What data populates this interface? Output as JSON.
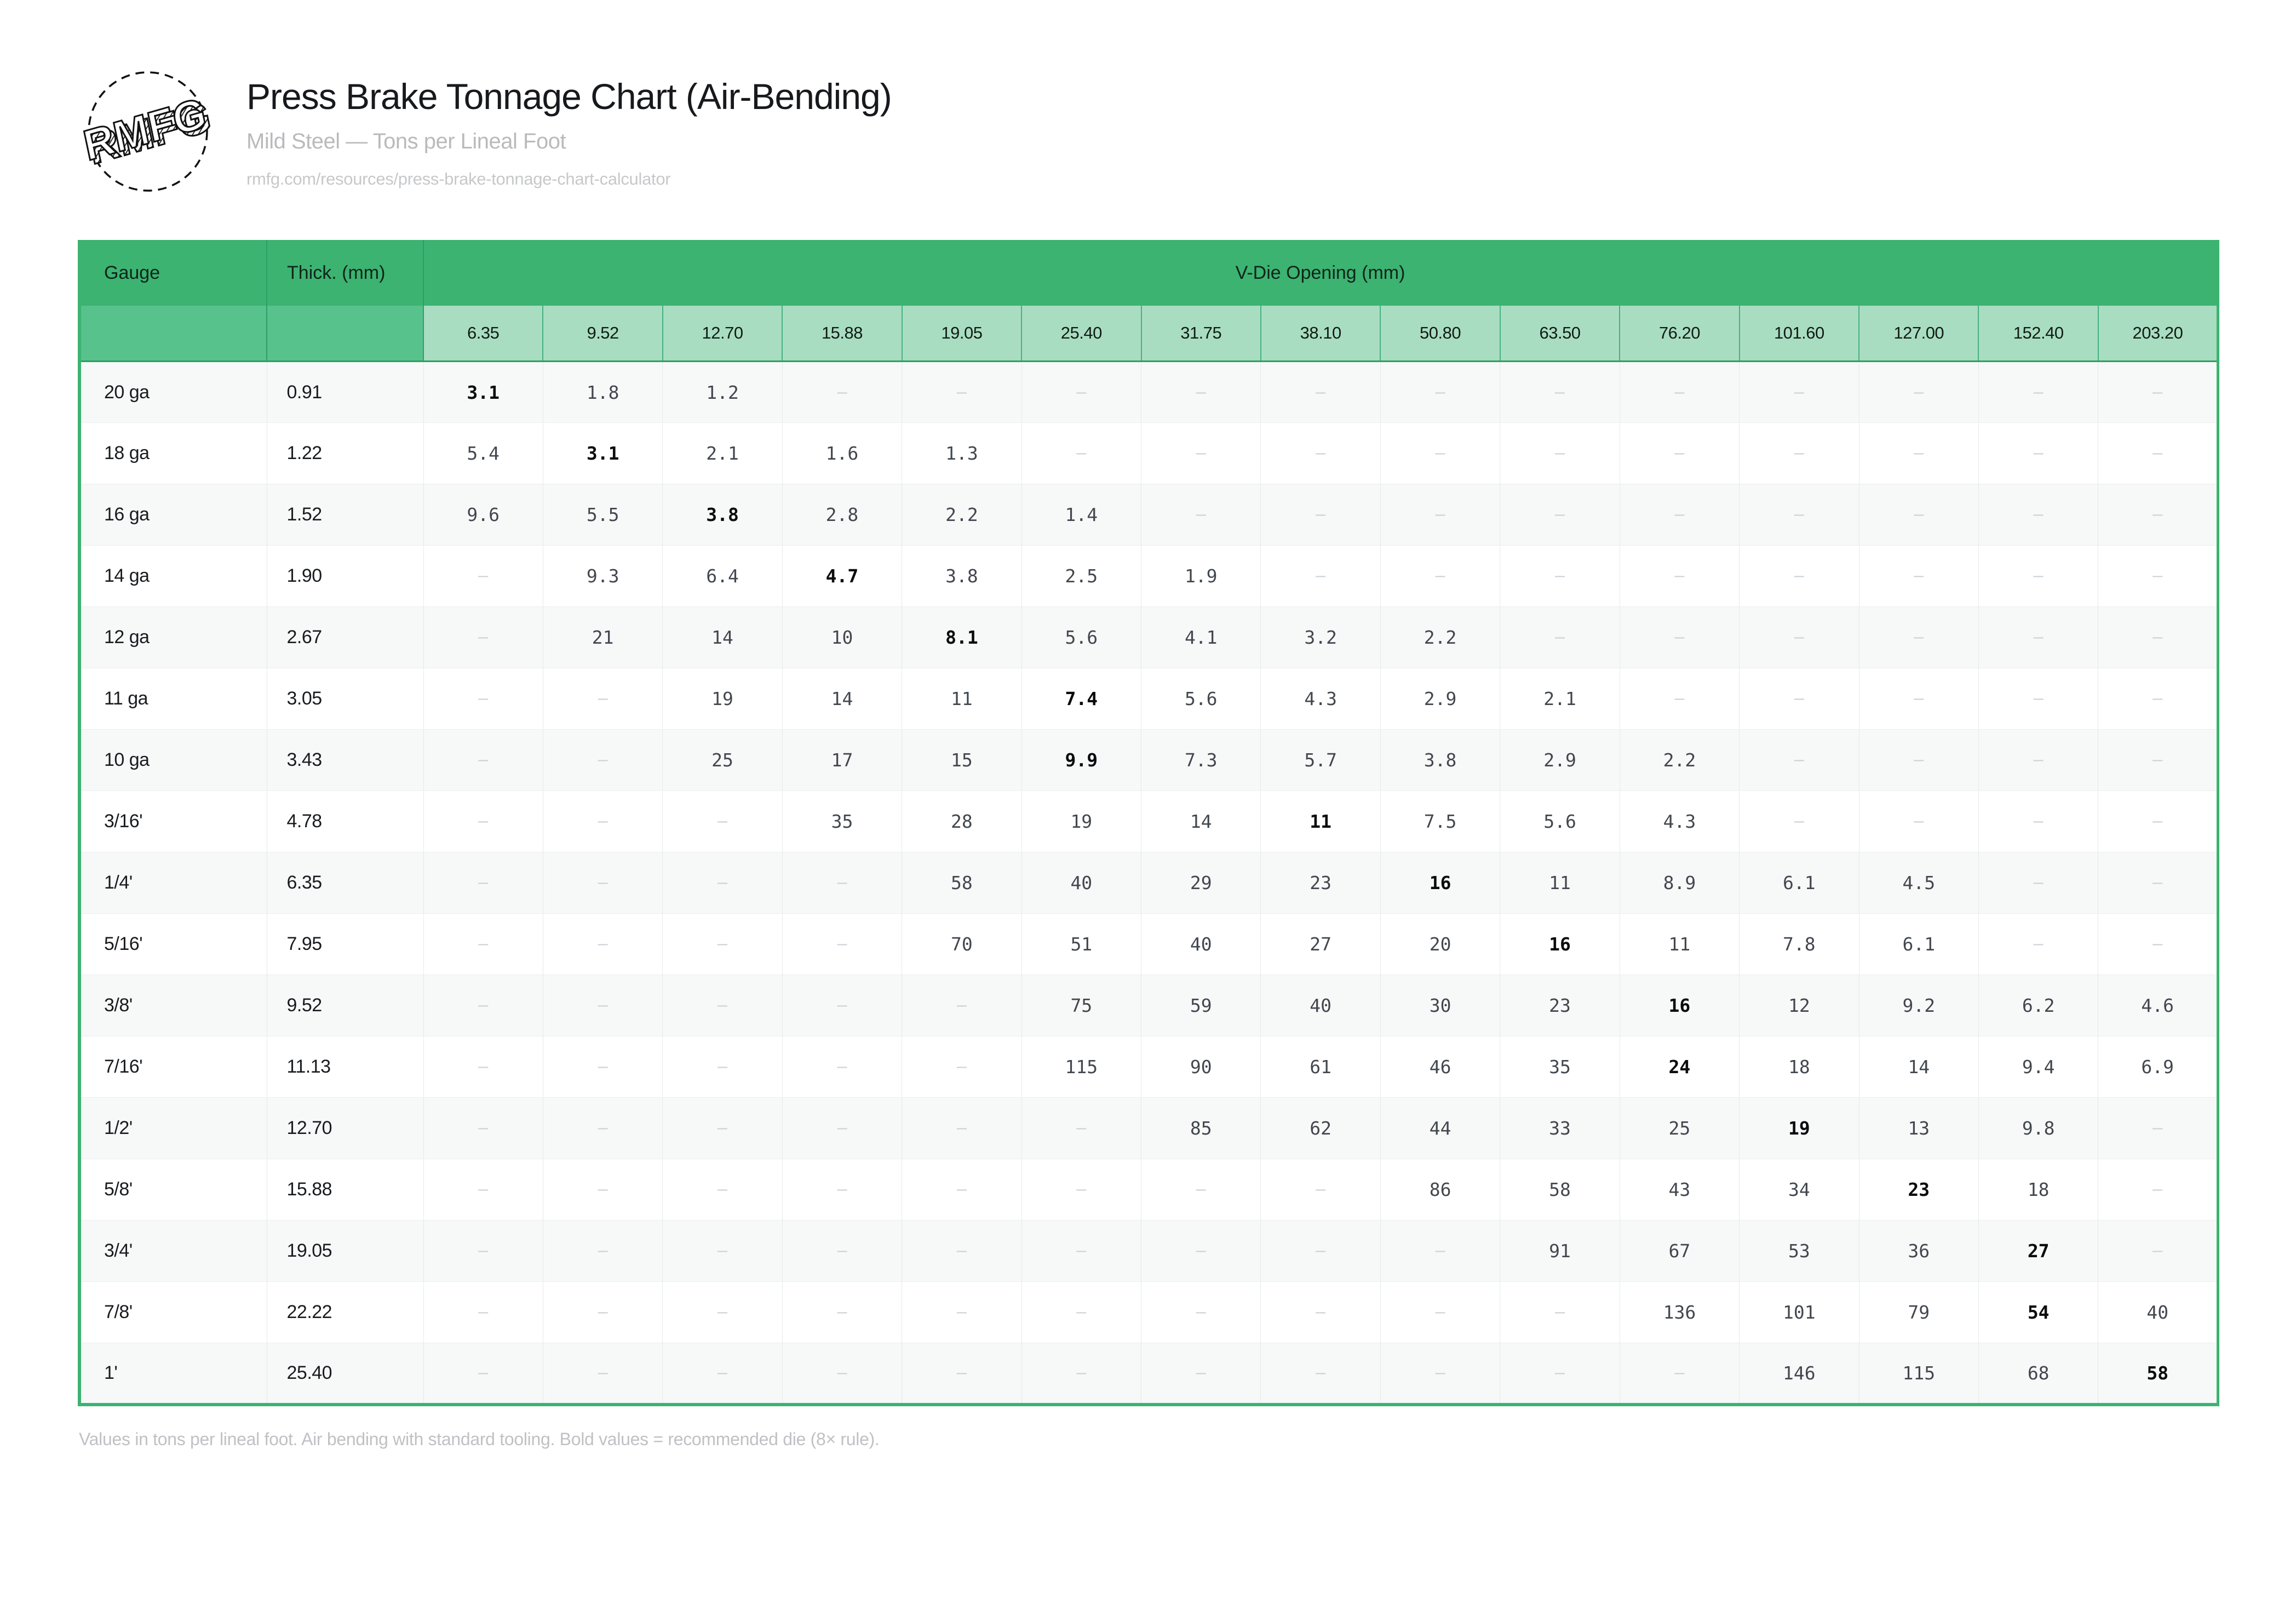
{
  "branding": {
    "logo_text": "RMFG"
  },
  "header": {
    "title": "Press Brake Tonnage Chart (Air-Bending)",
    "subtitle": "Mild Steel — Tons per Lineal Foot",
    "url": "rmfg.com/resources/press-brake-tonnage-chart-calculator"
  },
  "colors": {
    "header_green": "#3cb371",
    "subheader_corner_green": "#57c28c",
    "die_header_green": "#a9ddc1",
    "divider_green": "#2f9e66",
    "bold_value_color": "#0a0c0e",
    "value_color": "#42474e",
    "empty_dash_color": "#ccd1d6"
  },
  "table": {
    "gauge_label": "Gauge",
    "thickness_label": "Thick. (mm)",
    "vdie_group_label": "V-Die Opening (mm)",
    "empty_marker": "–",
    "die_openings": [
      "6.35",
      "9.52",
      "12.70",
      "15.88",
      "19.05",
      "25.40",
      "31.75",
      "38.10",
      "50.80",
      "63.50",
      "76.20",
      "101.60",
      "127.00",
      "152.40",
      "203.20"
    ],
    "rows": [
      {
        "gauge": "20 ga",
        "thickness": "0.91",
        "bold_col": 0,
        "values": [
          "3.1",
          "1.8",
          "1.2",
          null,
          null,
          null,
          null,
          null,
          null,
          null,
          null,
          null,
          null,
          null,
          null
        ]
      },
      {
        "gauge": "18 ga",
        "thickness": "1.22",
        "bold_col": 1,
        "values": [
          "5.4",
          "3.1",
          "2.1",
          "1.6",
          "1.3",
          null,
          null,
          null,
          null,
          null,
          null,
          null,
          null,
          null,
          null
        ]
      },
      {
        "gauge": "16 ga",
        "thickness": "1.52",
        "bold_col": 2,
        "values": [
          "9.6",
          "5.5",
          "3.8",
          "2.8",
          "2.2",
          "1.4",
          null,
          null,
          null,
          null,
          null,
          null,
          null,
          null,
          null
        ]
      },
      {
        "gauge": "14 ga",
        "thickness": "1.90",
        "bold_col": 3,
        "values": [
          null,
          "9.3",
          "6.4",
          "4.7",
          "3.8",
          "2.5",
          "1.9",
          null,
          null,
          null,
          null,
          null,
          null,
          null,
          null
        ]
      },
      {
        "gauge": "12 ga",
        "thickness": "2.67",
        "bold_col": 4,
        "values": [
          null,
          "21",
          "14",
          "10",
          "8.1",
          "5.6",
          "4.1",
          "3.2",
          "2.2",
          null,
          null,
          null,
          null,
          null,
          null
        ]
      },
      {
        "gauge": "11 ga",
        "thickness": "3.05",
        "bold_col": 5,
        "values": [
          null,
          null,
          "19",
          "14",
          "11",
          "7.4",
          "5.6",
          "4.3",
          "2.9",
          "2.1",
          null,
          null,
          null,
          null,
          null
        ]
      },
      {
        "gauge": "10 ga",
        "thickness": "3.43",
        "bold_col": 5,
        "values": [
          null,
          null,
          "25",
          "17",
          "15",
          "9.9",
          "7.3",
          "5.7",
          "3.8",
          "2.9",
          "2.2",
          null,
          null,
          null,
          null
        ]
      },
      {
        "gauge": "3/16'",
        "thickness": "4.78",
        "bold_col": 7,
        "values": [
          null,
          null,
          null,
          "35",
          "28",
          "19",
          "14",
          "11",
          "7.5",
          "5.6",
          "4.3",
          null,
          null,
          null,
          null
        ]
      },
      {
        "gauge": "1/4'",
        "thickness": "6.35",
        "bold_col": 8,
        "values": [
          null,
          null,
          null,
          null,
          "58",
          "40",
          "29",
          "23",
          "16",
          "11",
          "8.9",
          "6.1",
          "4.5",
          null,
          null
        ]
      },
      {
        "gauge": "5/16'",
        "thickness": "7.95",
        "bold_col": 9,
        "values": [
          null,
          null,
          null,
          null,
          "70",
          "51",
          "40",
          "27",
          "20",
          "16",
          "11",
          "7.8",
          "6.1",
          null,
          null
        ]
      },
      {
        "gauge": "3/8'",
        "thickness": "9.52",
        "bold_col": 10,
        "values": [
          null,
          null,
          null,
          null,
          null,
          "75",
          "59",
          "40",
          "30",
          "23",
          "16",
          "12",
          "9.2",
          "6.2",
          "4.6"
        ]
      },
      {
        "gauge": "7/16'",
        "thickness": "11.13",
        "bold_col": 10,
        "values": [
          null,
          null,
          null,
          null,
          null,
          "115",
          "90",
          "61",
          "46",
          "35",
          "24",
          "18",
          "14",
          "9.4",
          "6.9"
        ]
      },
      {
        "gauge": "1/2'",
        "thickness": "12.70",
        "bold_col": 11,
        "values": [
          null,
          null,
          null,
          null,
          null,
          null,
          "85",
          "62",
          "44",
          "33",
          "25",
          "19",
          "13",
          "9.8",
          null
        ]
      },
      {
        "gauge": "5/8'",
        "thickness": "15.88",
        "bold_col": 12,
        "values": [
          null,
          null,
          null,
          null,
          null,
          null,
          null,
          null,
          "86",
          "58",
          "43",
          "34",
          "23",
          "18",
          null
        ]
      },
      {
        "gauge": "3/4'",
        "thickness": "19.05",
        "bold_col": 13,
        "values": [
          null,
          null,
          null,
          null,
          null,
          null,
          null,
          null,
          null,
          "91",
          "67",
          "53",
          "36",
          "27",
          null
        ]
      },
      {
        "gauge": "7/8'",
        "thickness": "22.22",
        "bold_col": 13,
        "values": [
          null,
          null,
          null,
          null,
          null,
          null,
          null,
          null,
          null,
          null,
          "136",
          "101",
          "79",
          "54",
          "40"
        ]
      },
      {
        "gauge": "1'",
        "thickness": "25.40",
        "bold_col": 14,
        "values": [
          null,
          null,
          null,
          null,
          null,
          null,
          null,
          null,
          null,
          null,
          null,
          "146",
          "115",
          "68",
          "58"
        ]
      }
    ]
  },
  "footer": {
    "note": "Values in tons per lineal foot. Air bending with standard tooling. Bold values = recommended die (8× rule)."
  }
}
